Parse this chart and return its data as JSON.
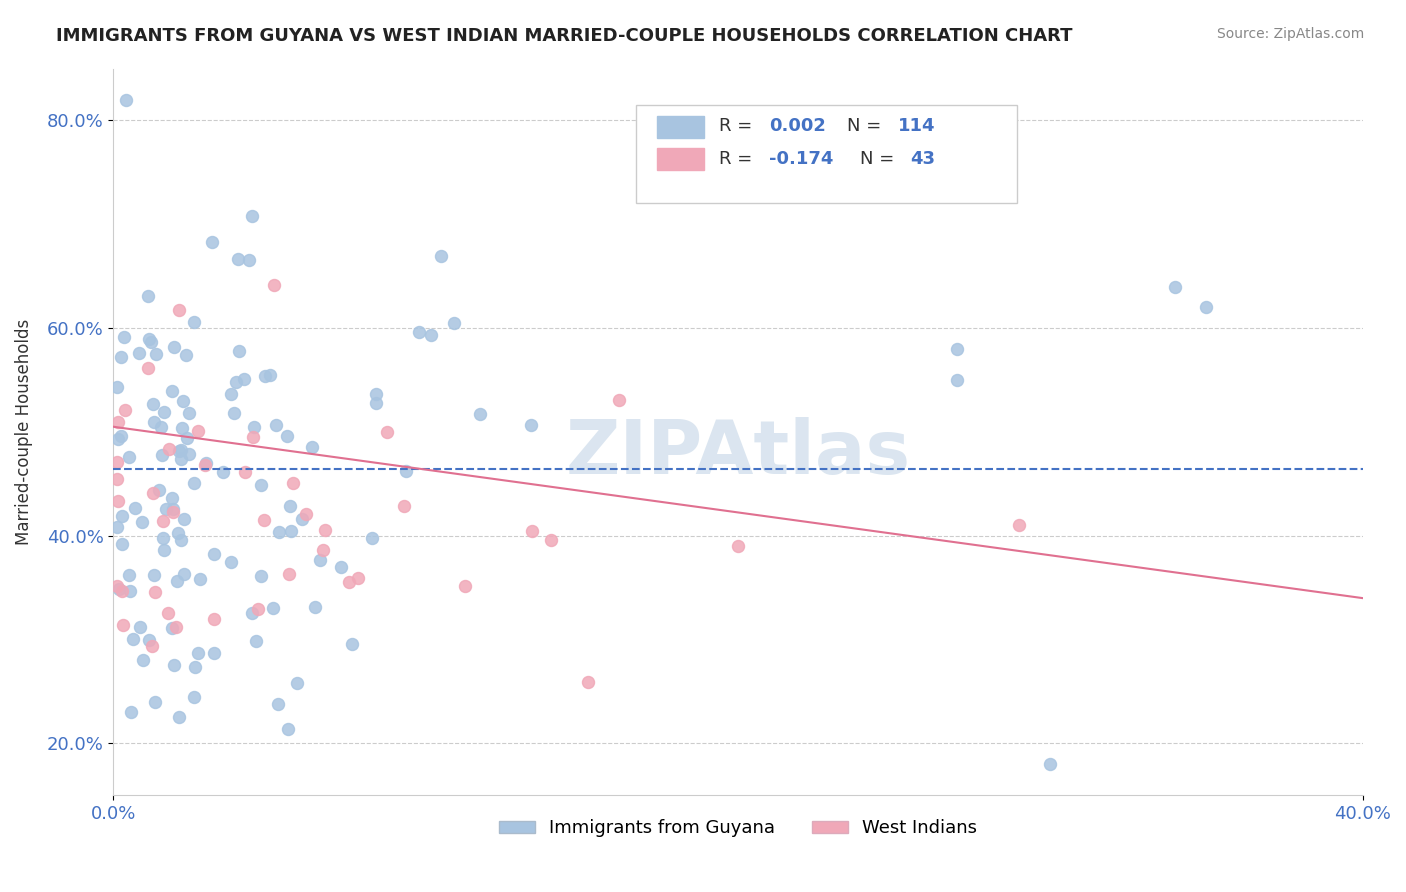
{
  "title": "IMMIGRANTS FROM GUYANA VS WEST INDIAN MARRIED-COUPLE HOUSEHOLDS CORRELATION CHART",
  "source": "Source: ZipAtlas.com",
  "ylabel_label": "Married-couple Households",
  "y_ticks": [
    0.2,
    0.4,
    0.6,
    0.8
  ],
  "y_tick_labels": [
    "20.0%",
    "40.0%",
    "60.0%",
    "80.0%"
  ],
  "xlim": [
    0.0,
    0.4
  ],
  "ylim": [
    0.15,
    0.85
  ],
  "blue_R": "0.002",
  "blue_N": "114",
  "pink_R": "-0.174",
  "pink_N": "43",
  "blue_color": "#a8c4e0",
  "pink_color": "#f0a8b8",
  "blue_line_color": "#4472c4",
  "pink_line_color": "#e07090",
  "legend_blue_label": "Immigrants from Guyana",
  "legend_pink_label": "West Indians",
  "watermark": "ZIPAtlas",
  "watermark_color": "#c8d8e8",
  "blue_trend_x": [
    0.0,
    0.4
  ],
  "blue_trend_y": [
    0.464,
    0.464
  ],
  "pink_trend_x": [
    0.0,
    0.4
  ],
  "pink_trend_y": [
    0.505,
    0.34
  ],
  "label_color": "#4472c4",
  "text_color": "#333333",
  "grid_color": "#cccccc",
  "title_color": "#222222",
  "source_color": "#888888"
}
